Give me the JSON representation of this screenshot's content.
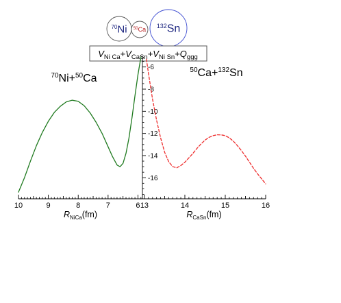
{
  "chart_data": {
    "type": "line",
    "nuclei": [
      {
        "mass": "70",
        "symbol": "Ni",
        "color": "#1a237e",
        "ring": "#555555"
      },
      {
        "mass": "50",
        "symbol": "Ca",
        "color": "#b71c1c",
        "ring": "#555555"
      },
      {
        "mass": "132",
        "symbol": "Sn",
        "color": "#1a237e",
        "ring": "#3b4ad0"
      }
    ],
    "potential_legend": [
      {
        "text": "V",
        "style": "italic"
      },
      {
        "text": "Ni Ca",
        "style": "sub"
      },
      {
        "text": "+",
        "style": "normal"
      },
      {
        "text": "V",
        "style": "italic"
      },
      {
        "text": "CaSn",
        "style": "sub"
      },
      {
        "text": "+",
        "style": "normal"
      },
      {
        "text": "V",
        "style": "italic"
      },
      {
        "text": "Ni Sn",
        "style": "sub"
      },
      {
        "text": "+",
        "style": "normal"
      },
      {
        "text": "Q",
        "style": "italic"
      },
      {
        "text": "ggg",
        "style": "sub"
      }
    ],
    "panels": [
      {
        "id": "left",
        "label": {
          "mass1": "70",
          "sym1": "Ni",
          "plus": "+",
          "mass2": "50",
          "sym2": "Ca"
        },
        "xlabel": {
          "var": "R",
          "sub": "NiCa",
          "unit": "(fm)"
        },
        "xlim": [
          10,
          5.85
        ],
        "x_ticks": [
          10,
          9,
          8,
          7,
          6
        ],
        "series": [
          {
            "name": "",
            "color": "#1f7a1f",
            "dashed": false,
            "x": [
              10.0,
              9.8,
              9.6,
              9.4,
              9.2,
              9.0,
              8.8,
              8.6,
              8.4,
              8.2,
              8.0,
              7.8,
              7.6,
              7.4,
              7.2,
              7.0,
              6.85,
              6.7,
              6.6,
              6.5,
              6.4,
              6.3,
              6.2,
              6.1,
              6.0,
              5.95,
              5.9
            ],
            "y": [
              -17.3,
              -16.0,
              -14.5,
              -13.1,
              -11.9,
              -10.9,
              -10.1,
              -9.55,
              -9.15,
              -9.0,
              -9.1,
              -9.5,
              -10.15,
              -11.0,
              -12.0,
              -13.2,
              -14.1,
              -14.85,
              -15.0,
              -14.7,
              -13.8,
              -12.4,
              -10.6,
              -8.6,
              -6.7,
              -5.9,
              -5.1
            ]
          }
        ]
      },
      {
        "id": "right",
        "label": {
          "mass1": "50",
          "sym1": "Ca",
          "plus": "+",
          "mass2": "132",
          "sym2": "Sn"
        },
        "xlabel": {
          "var": "R",
          "sub": "CaSn",
          "unit": "(fm)"
        },
        "xlim": [
          12.95,
          16.0
        ],
        "x_ticks": [
          13,
          14,
          15,
          16
        ],
        "series": [
          {
            "name": "",
            "color": "#ee2b2b",
            "dashed": true,
            "x": [
              13.05,
              13.1,
              13.2,
              13.3,
              13.4,
              13.5,
              13.6,
              13.7,
              13.8,
              13.9,
              14.0,
              14.1,
              14.2,
              14.3,
              14.4,
              14.5,
              14.6,
              14.7,
              14.8,
              14.9,
              15.0,
              15.1,
              15.2,
              15.3,
              15.4,
              15.5,
              15.6,
              15.7,
              15.8,
              15.9,
              16.0
            ],
            "y": [
              -5.3,
              -6.6,
              -8.9,
              -10.8,
              -12.4,
              -13.7,
              -14.55,
              -15.0,
              -15.1,
              -14.9,
              -14.6,
              -14.2,
              -13.8,
              -13.35,
              -12.95,
              -12.6,
              -12.35,
              -12.2,
              -12.12,
              -12.13,
              -12.2,
              -12.4,
              -12.7,
              -13.1,
              -13.55,
              -14.05,
              -14.6,
              -15.15,
              -15.65,
              -16.1,
              -16.55
            ]
          }
        ]
      }
    ],
    "y_axis": {
      "ylim": [
        -17.9,
        -5.4
      ],
      "ticks": [
        -6,
        -8,
        -10,
        -12,
        -14,
        -16
      ]
    },
    "grid": false
  }
}
